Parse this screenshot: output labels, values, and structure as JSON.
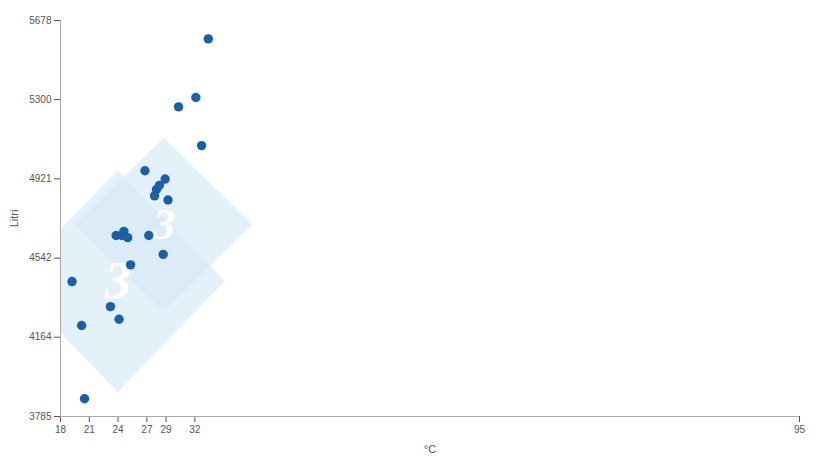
{
  "chart_data": {
    "type": "scatter",
    "x": [
      19.2,
      20.2,
      20.5,
      23.2,
      23.8,
      24.1,
      24.4,
      24.6,
      25.0,
      25.3,
      26.8,
      27.2,
      27.8,
      28.0,
      28.3,
      28.7,
      28.9,
      29.2,
      30.3,
      32.1,
      32.7,
      33.4
    ],
    "y": [
      4430,
      4220,
      3870,
      4310,
      4650,
      4250,
      4650,
      4670,
      4640,
      4510,
      4960,
      4650,
      4840,
      4870,
      4890,
      4560,
      4920,
      4820,
      5265,
      5310,
      5080,
      5590
    ],
    "color": "#1a5fa8",
    "xlabel": "°C",
    "ylabel": "Litri",
    "xlim": [
      18,
      95
    ],
    "ylim": [
      3785,
      5678
    ],
    "xticks": [
      18,
      21,
      24,
      27,
      29,
      32,
      95
    ],
    "yticks": [
      3785,
      4164,
      4542,
      4921,
      5300,
      5678
    ],
    "grid": false,
    "annotations": [
      {
        "text": "3",
        "x": 24.0,
        "y": 4430
      },
      {
        "text": "3",
        "x": 28.8,
        "y": 4700
      }
    ]
  }
}
